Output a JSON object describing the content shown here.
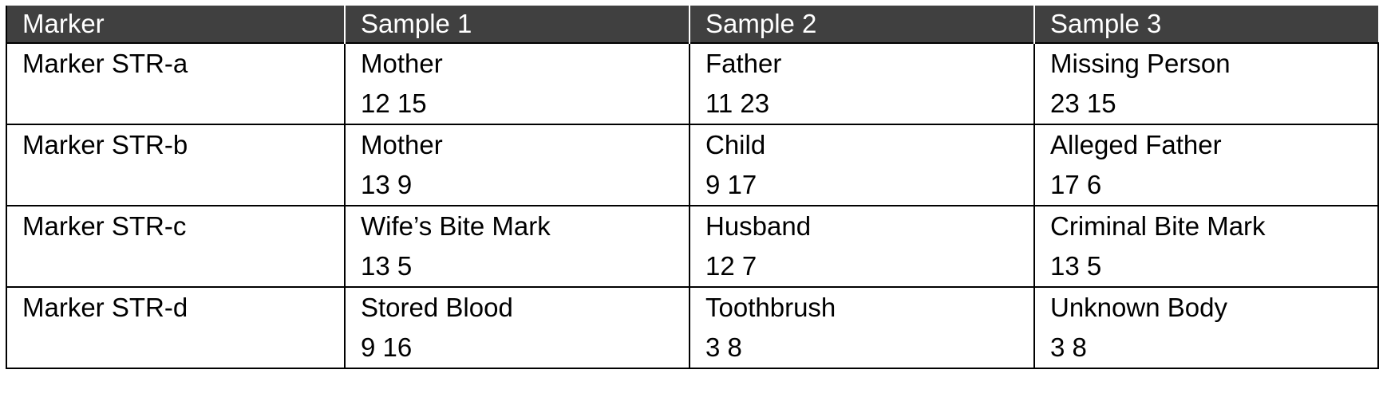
{
  "table": {
    "headers": [
      "Marker",
      "Sample 1",
      "Sample 2",
      "Sample 3"
    ],
    "rows": [
      {
        "marker": "Marker STR-a",
        "samples": [
          {
            "label": "Mother",
            "alleles": "12 15"
          },
          {
            "label": "Father",
            "alleles": "11 23"
          },
          {
            "label": "Missing Person",
            "alleles": "23 15"
          }
        ]
      },
      {
        "marker": "Marker STR-b",
        "samples": [
          {
            "label": "Mother",
            "alleles": "13 9"
          },
          {
            "label": "Child",
            "alleles": "9 17"
          },
          {
            "label": "Alleged Father",
            "alleles": "17 6"
          }
        ]
      },
      {
        "marker": "Marker STR-c",
        "samples": [
          {
            "label": "Wife’s Bite Mark",
            "alleles": "13 5"
          },
          {
            "label": "Husband",
            "alleles": "12 7"
          },
          {
            "label": "Criminal Bite Mark",
            "alleles": "13 5"
          }
        ]
      },
      {
        "marker": "Marker STR-d",
        "samples": [
          {
            "label": "Stored Blood",
            "alleles": "9 16"
          },
          {
            "label": "Toothbrush",
            "alleles": "3 8"
          },
          {
            "label": "Unknown Body",
            "alleles": "3 8"
          }
        ]
      }
    ]
  }
}
